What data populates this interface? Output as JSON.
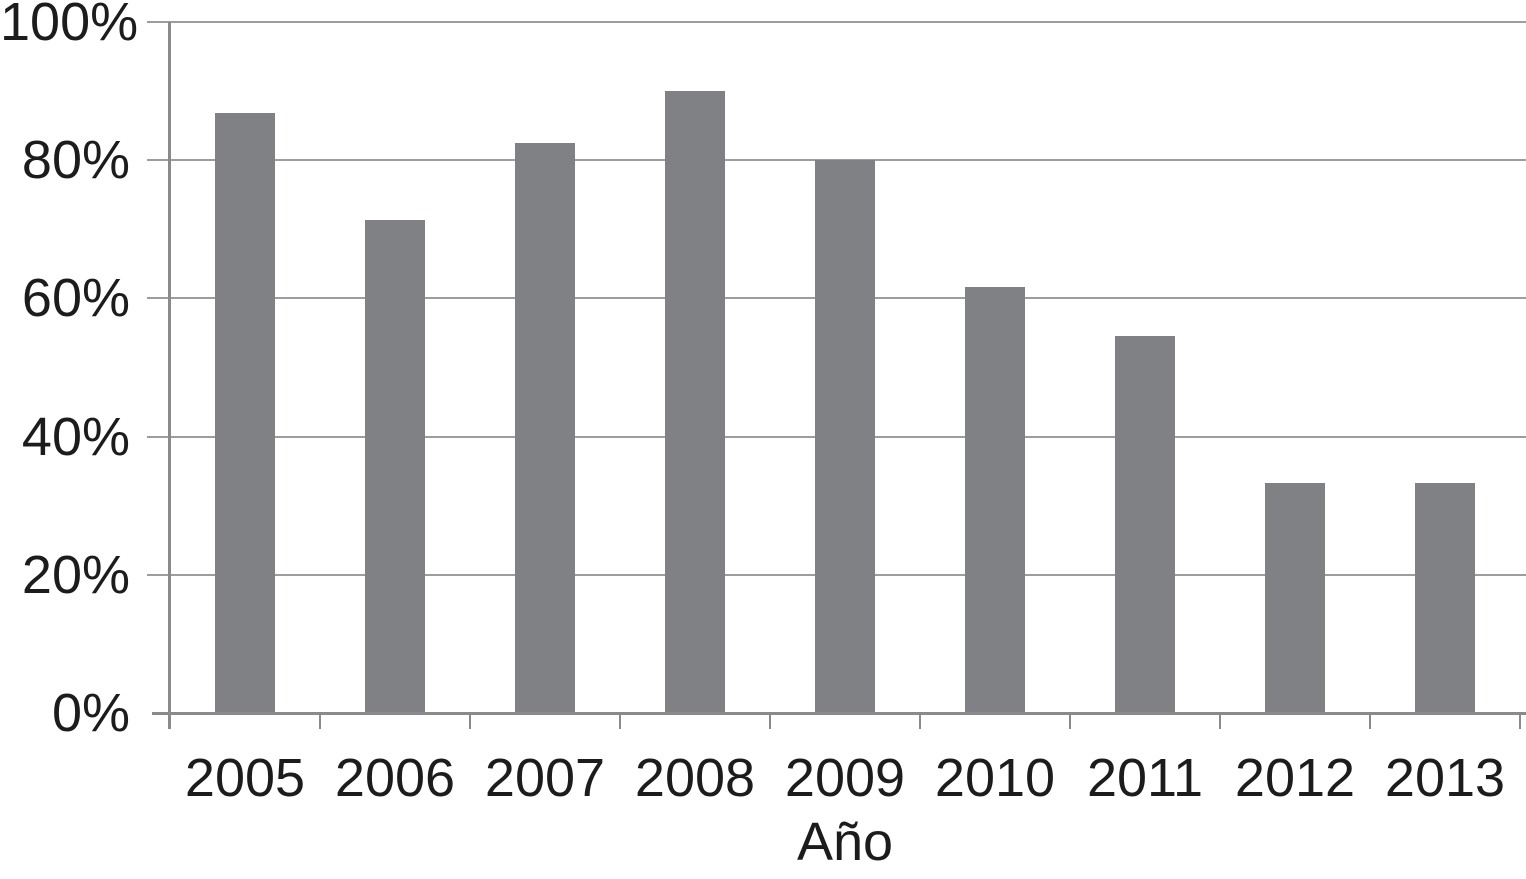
{
  "chart_data": {
    "type": "bar",
    "title": "",
    "xlabel": "Año",
    "ylabel": "",
    "categories": [
      "2005",
      "2006",
      "2007",
      "2008",
      "2009",
      "2010",
      "2011",
      "2012",
      "2013"
    ],
    "values": [
      86.8,
      71.4,
      82.5,
      90,
      80,
      61.6,
      54.5,
      33.3,
      33.3
    ],
    "value_unit": "%",
    "ylim": [
      0,
      100
    ],
    "yticks": [
      {
        "value": 0,
        "label": "0%"
      },
      {
        "value": 20,
        "label": "20%"
      },
      {
        "value": 40,
        "label": "40%"
      },
      {
        "value": 60,
        "label": "60%"
      },
      {
        "value": 80,
        "label": "80%"
      },
      {
        "value": 100,
        "label": "100%"
      }
    ],
    "grid": "horizontal gridlines on",
    "legend": "none",
    "colors": {
      "bar_fill": "#7f8184",
      "gridline": "#9d9d9d",
      "axis": "#8a8a8a",
      "text": "#1c1c1c",
      "background": "#ffffff"
    }
  }
}
